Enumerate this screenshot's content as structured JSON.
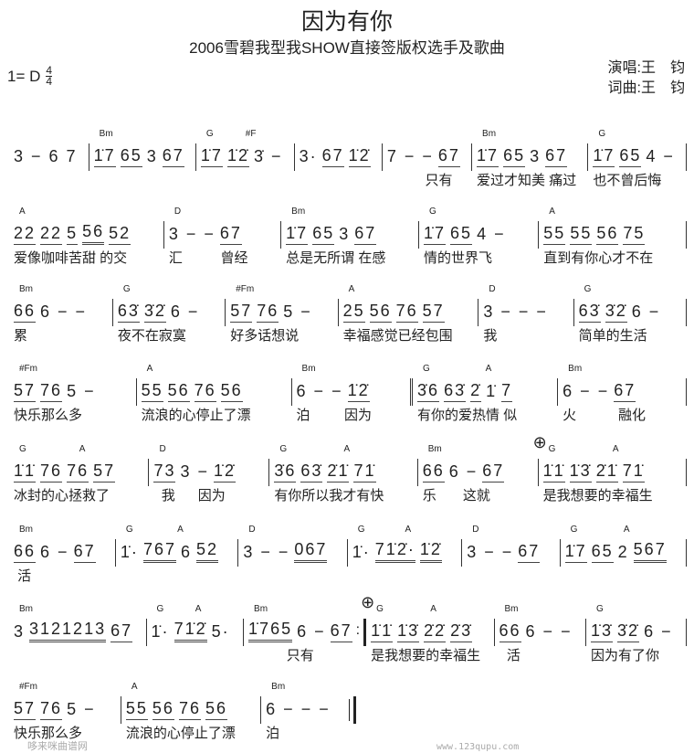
{
  "header": {
    "title": "因为有你",
    "subtitle": "2006雪碧我型我SHOW直接签版权选手及歌曲",
    "key": "1= D",
    "meter_top": "4",
    "meter_bottom": "4",
    "singer_label": "演唱:",
    "singer": "王　钧",
    "composer_label": "词曲:",
    "composer": "王　钧"
  },
  "rows": [
    {
      "measures": [
        {
          "chords": [],
          "notes": [
            {
              "t": "3 − 6 7",
              "u": 0
            }
          ],
          "lyric": "",
          "bar": "single"
        },
        {
          "chords": [
            "Bm"
          ],
          "notes": [
            {
              "t": "1̇7",
              "u": 1
            },
            {
              "t": "65",
              "u": 1
            },
            {
              "t": "3",
              "u": 0
            },
            {
              "t": "67",
              "u": 1
            }
          ],
          "lyric": "",
          "bar": "single"
        },
        {
          "chords": [
            "G",
            "#F"
          ],
          "notes": [
            {
              "t": "1̇7",
              "u": 1
            },
            {
              "t": "1̇2̇",
              "u": 1
            },
            {
              "t": "3̇ −",
              "u": 0
            }
          ],
          "lyric": "",
          "bar": "single"
        },
        {
          "chords": [],
          "notes": [
            {
              "t": "3·",
              "u": 0
            },
            {
              "t": "67",
              "u": 1
            },
            {
              "t": "1̇2̇",
              "u": 1
            }
          ],
          "lyric": "",
          "bar": "single"
        },
        {
          "chords": [],
          "notes": [
            {
              "t": "7 − −",
              "u": 0
            },
            {
              "t": "67",
              "u": 1
            }
          ],
          "lyric": "          只有",
          "bar": "single"
        },
        {
          "chords": [
            "Bm"
          ],
          "notes": [
            {
              "t": "1̇7",
              "u": 1
            },
            {
              "t": "65",
              "u": 1
            },
            {
              "t": "3",
              "u": 0
            },
            {
              "t": "67",
              "u": 1
            }
          ],
          "lyric": "爱过才知美 痛过",
          "bar": "single"
        },
        {
          "chords": [
            "G"
          ],
          "notes": [
            {
              "t": "1̇7",
              "u": 1
            },
            {
              "t": "65",
              "u": 1
            },
            {
              "t": "4 −",
              "u": 0
            }
          ],
          "lyric": "也不曾后悔",
          "bar": "single"
        }
      ]
    },
    {
      "measures": [
        {
          "chords": [
            "A"
          ],
          "notes": [
            {
              "t": "22",
              "u": 1
            },
            {
              "t": "22",
              "u": 1
            },
            {
              "t": "5",
              "u": 1
            },
            {
              "t": "56",
              "u": 2
            },
            {
              "t": "52",
              "u": 1
            }
          ],
          "lyric": "爱像咖啡苦甜 的交",
          "bar": "single"
        },
        {
          "chords": [
            "D"
          ],
          "notes": [
            {
              "t": "3 − −",
              "u": 0
            },
            {
              "t": "67",
              "u": 1
            }
          ],
          "lyric": "汇          曾经",
          "bar": "single"
        },
        {
          "chords": [
            "Bm"
          ],
          "notes": [
            {
              "t": "1̇7",
              "u": 1
            },
            {
              "t": "65",
              "u": 1
            },
            {
              "t": "3",
              "u": 0
            },
            {
              "t": "67",
              "u": 1
            }
          ],
          "lyric": "总是无所谓 在感",
          "bar": "single"
        },
        {
          "chords": [
            "G"
          ],
          "notes": [
            {
              "t": "1̇7",
              "u": 1
            },
            {
              "t": "65",
              "u": 1
            },
            {
              "t": "4 −",
              "u": 0
            }
          ],
          "lyric": "情的世界飞",
          "bar": "single"
        },
        {
          "chords": [
            "A"
          ],
          "notes": [
            {
              "t": "55",
              "u": 1
            },
            {
              "t": "55",
              "u": 1
            },
            {
              "t": "56",
              "u": 1
            },
            {
              "t": "75",
              "u": 1
            }
          ],
          "lyric": "直到有你心才不在",
          "bar": "single"
        }
      ]
    },
    {
      "measures": [
        {
          "chords": [
            "Bm"
          ],
          "notes": [
            {
              "t": "66",
              "u": 1
            },
            {
              "t": "6 − −",
              "u": 0
            }
          ],
          "lyric": "累",
          "bar": "single"
        },
        {
          "chords": [
            "G"
          ],
          "notes": [
            {
              "t": "63̇",
              "u": 1
            },
            {
              "t": "3̇2̇",
              "u": 1
            },
            {
              "t": "6 −",
              "u": 0
            }
          ],
          "lyric": "夜不在寂寞",
          "bar": "single"
        },
        {
          "chords": [
            "#Fm"
          ],
          "notes": [
            {
              "t": "57",
              "u": 1
            },
            {
              "t": "76",
              "u": 1
            },
            {
              "t": "5 −",
              "u": 0
            }
          ],
          "lyric": "好多话想说",
          "bar": "single"
        },
        {
          "chords": [
            "A"
          ],
          "notes": [
            {
              "t": "25",
              "u": 1
            },
            {
              "t": "56",
              "u": 1
            },
            {
              "t": "76",
              "u": 1
            },
            {
              "t": "57",
              "u": 1
            }
          ],
          "lyric": "幸福感觉已经包围",
          "bar": "single"
        },
        {
          "chords": [
            "D"
          ],
          "notes": [
            {
              "t": "3 − − −",
              "u": 0
            }
          ],
          "lyric": "我",
          "bar": "single"
        },
        {
          "chords": [
            "G"
          ],
          "notes": [
            {
              "t": "63̇",
              "u": 1
            },
            {
              "t": "3̇2̇",
              "u": 1
            },
            {
              "t": "6 −",
              "u": 0
            }
          ],
          "lyric": "简单的生活",
          "bar": "single"
        }
      ]
    },
    {
      "measures": [
        {
          "chords": [
            "#Fm"
          ],
          "notes": [
            {
              "t": "57",
              "u": 1
            },
            {
              "t": "76",
              "u": 1
            },
            {
              "t": "5 −",
              "u": 0
            }
          ],
          "lyric": "快乐那么多",
          "bar": "single"
        },
        {
          "chords": [
            "A"
          ],
          "notes": [
            {
              "t": "55",
              "u": 1
            },
            {
              "t": "56",
              "u": 1
            },
            {
              "t": "76",
              "u": 1
            },
            {
              "t": "56",
              "u": 1
            }
          ],
          "lyric": "流浪的心停止了漂",
          "bar": "single"
        },
        {
          "chords": [
            "Bm"
          ],
          "notes": [
            {
              "t": "6 − −",
              "u": 0
            },
            {
              "t": "1̇2̇",
              "u": 1
            }
          ],
          "lyric": "泊         因为",
          "bar": "double"
        },
        {
          "chords": [
            "G",
            "A"
          ],
          "notes": [
            {
              "t": "3̇6",
              "u": 1
            },
            {
              "t": "63̇",
              "u": 1
            },
            {
              "t": "2̇",
              "u": 1
            },
            {
              "t": "1̇",
              "u": 0
            },
            {
              "t": "7",
              "u": 1
            }
          ],
          "lyric": "有你的爱热情 似",
          "bar": "single"
        },
        {
          "chords": [
            "Bm"
          ],
          "notes": [
            {
              "t": "6 − −",
              "u": 0
            },
            {
              "t": "67",
              "u": 1
            }
          ],
          "lyric": "火           融化",
          "bar": "single"
        }
      ]
    },
    {
      "measures": [
        {
          "chords": [
            "G",
            "A"
          ],
          "notes": [
            {
              "t": "1̇1̇",
              "u": 1
            },
            {
              "t": "76",
              "u": 1
            },
            {
              "t": "76",
              "u": 1
            },
            {
              "t": "57",
              "u": 1
            }
          ],
          "lyric": "冰封的心拯救了",
          "bar": "single"
        },
        {
          "chords": [
            "D"
          ],
          "notes": [
            {
              "t": "73",
              "u": 1
            },
            {
              "t": "3 −",
              "u": 0
            },
            {
              "t": "1̇2̇",
              "u": 1
            }
          ],
          "lyric": "  我      因为",
          "bar": "single"
        },
        {
          "chords": [
            "G",
            "A"
          ],
          "notes": [
            {
              "t": "3̇6",
              "u": 1
            },
            {
              "t": "63̇",
              "u": 1
            },
            {
              "t": "2̇1̇",
              "u": 1
            },
            {
              "t": "71̇",
              "u": 1
            }
          ],
          "lyric": "有你所以我才有快",
          "bar": "single"
        },
        {
          "chords": [
            "Bm"
          ],
          "notes": [
            {
              "t": "66",
              "u": 1
            },
            {
              "t": "6 −",
              "u": 0
            },
            {
              "t": "67",
              "u": 1
            }
          ],
          "lyric": "乐       这就",
          "bar": "single"
        },
        {
          "chords": [
            "G",
            "A"
          ],
          "coda": true,
          "notes": [
            {
              "t": "1̇1̇",
              "u": 1
            },
            {
              "t": "1̇3̇",
              "u": 1
            },
            {
              "t": "2̇1̇",
              "u": 1
            },
            {
              "t": "71̇",
              "u": 1
            }
          ],
          "lyric": "是我想要的幸福生",
          "bar": "single"
        }
      ]
    },
    {
      "measures": [
        {
          "chords": [
            "Bm"
          ],
          "notes": [
            {
              "t": "66",
              "u": 1
            },
            {
              "t": "6 −",
              "u": 0
            },
            {
              "t": "67",
              "u": 1
            }
          ],
          "lyric": " 活",
          "bar": "single"
        },
        {
          "chords": [
            "G",
            "A"
          ],
          "notes": [
            {
              "t": "1̇·",
              "u": 0
            },
            {
              "t": "767",
              "u": 2
            },
            {
              "t": "6",
              "u": 0
            },
            {
              "t": "52",
              "u": 2
            }
          ],
          "lyric": "",
          "bar": "single"
        },
        {
          "chords": [
            "D"
          ],
          "notes": [
            {
              "t": "3 − −",
              "u": 0
            },
            {
              "t": "067",
              "u": 2
            }
          ],
          "lyric": "",
          "bar": "single"
        },
        {
          "chords": [
            "G",
            "A"
          ],
          "notes": [
            {
              "t": "1̇·",
              "u": 0
            },
            {
              "t": "71̇2̇·",
              "u": 2
            },
            {
              "t": "1̇2̇",
              "u": 2
            }
          ],
          "lyric": "",
          "bar": "single"
        },
        {
          "chords": [
            "D"
          ],
          "notes": [
            {
              "t": "3 − −",
              "u": 0
            },
            {
              "t": "67",
              "u": 1
            }
          ],
          "lyric": "",
          "bar": "single"
        },
        {
          "chords": [
            "G",
            "A"
          ],
          "notes": [
            {
              "t": "1̇7",
              "u": 1
            },
            {
              "t": "65",
              "u": 1
            },
            {
              "t": "2",
              "u": 0
            },
            {
              "t": "567",
              "u": 2
            }
          ],
          "lyric": "",
          "bar": "single"
        }
      ]
    },
    {
      "measures": [
        {
          "chords": [
            "Bm"
          ],
          "notes": [
            {
              "t": "3",
              "u": 0
            },
            {
              "t": "3121213",
              "u": 2
            },
            {
              "t": "67",
              "u": 1
            }
          ],
          "lyric": "",
          "bar": "single"
        },
        {
          "chords": [
            "G",
            "A"
          ],
          "notes": [
            {
              "t": "1̇·",
              "u": 0
            },
            {
              "t": "71̇2̇",
              "u": 2
            },
            {
              "t": "5·",
              "u": 0
            }
          ],
          "lyric": "",
          "bar": "single"
        },
        {
          "chords": [
            "Bm"
          ],
          "notes": [
            {
              "t": "1̇765",
              "u": 2
            },
            {
              "t": "6 −",
              "u": 0
            },
            {
              "t": "67",
              "u": 1
            }
          ],
          "lyric": "          只有",
          "bar": "repeat-end"
        },
        {
          "chords": [
            "G",
            "A"
          ],
          "coda": true,
          "notes": [
            {
              "t": "1̇1̇",
              "u": 1
            },
            {
              "t": "1̇3̇",
              "u": 1
            },
            {
              "t": "2̇2̇",
              "u": 1
            },
            {
              "t": "2̇3̇",
              "u": 1
            }
          ],
          "lyric": "是我想要的幸福生",
          "bar": "single"
        },
        {
          "chords": [
            "Bm"
          ],
          "notes": [
            {
              "t": "66",
              "u": 1
            },
            {
              "t": "6 − −",
              "u": 0
            }
          ],
          "lyric": "  活",
          "bar": "single"
        },
        {
          "chords": [
            "G"
          ],
          "notes": [
            {
              "t": "1̇3̇",
              "u": 1
            },
            {
              "t": "3̇2̇",
              "u": 1
            },
            {
              "t": "6 −",
              "u": 0
            }
          ],
          "lyric": "因为有了你",
          "bar": "single"
        }
      ]
    },
    {
      "partial": true,
      "measures": [
        {
          "chords": [
            "#Fm"
          ],
          "notes": [
            {
              "t": "57",
              "u": 1
            },
            {
              "t": "76",
              "u": 1
            },
            {
              "t": "5 −",
              "u": 0
            }
          ],
          "lyric": "快乐那么多",
          "bar": "single"
        },
        {
          "chords": [
            "A"
          ],
          "notes": [
            {
              "t": "55",
              "u": 1
            },
            {
              "t": "56",
              "u": 1
            },
            {
              "t": "76",
              "u": 1
            },
            {
              "t": "56",
              "u": 1
            }
          ],
          "lyric": "流浪的心停止了漂",
          "bar": "single"
        },
        {
          "chords": [
            "Bm"
          ],
          "notes": [
            {
              "t": "6 − − −",
              "u": 0
            }
          ],
          "lyric": "泊",
          "bar": "final"
        }
      ]
    }
  ],
  "footer": {
    "site_name": "哆来咪曲谱网",
    "site_url": "www.123qupu.com"
  }
}
